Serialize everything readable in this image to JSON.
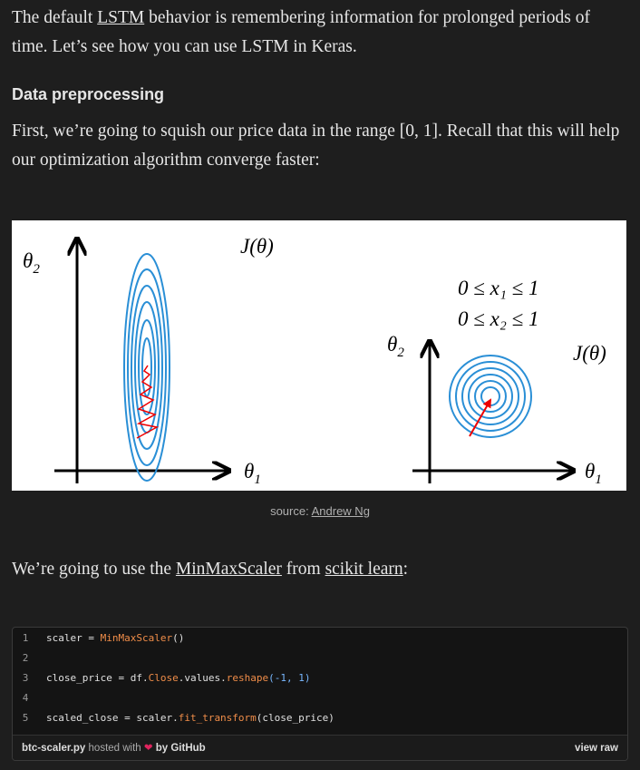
{
  "paragraphs": [
    {
      "before": "The default ",
      "link": "LSTM",
      "after": " behavior is remembering information for prolonged periods of time. Let’s see how you can use LSTM in Keras."
    },
    {
      "text": "First, we’re going to squish our price data in the range [0, 1]. Recall that this will help our optimization algorithm converge faster:"
    },
    {
      "before": "We’re going to use the ",
      "link1": "MinMaxScaler",
      "middle": " from ",
      "link2": "scikit learn",
      "after": ":"
    }
  ],
  "heading": "Data preprocessing",
  "figure": {
    "left": {
      "y_axis": "θ",
      "y_sub": "2",
      "cost": "J(θ)",
      "x_axis": "θ",
      "x_sub": "1"
    },
    "right": {
      "constraint1": "0 ≤ x₁ ≤ 1",
      "constraint2": "0 ≤ x₂ ≤ 1",
      "y_axis": "θ",
      "y_sub": "2",
      "cost": "J(θ)",
      "x_axis": "θ",
      "x_sub": "1"
    },
    "caption": "source: ",
    "caption_link": "Andrew Ng"
  },
  "gist": {
    "lines": [
      {
        "number": "1",
        "tokens": [
          {
            "text": "scaler ",
            "color": "#e0e0e0"
          },
          {
            "text": "=",
            "color": "#e0e0e0"
          },
          {
            "text": " MinMaxScaler",
            "color": "#f08d49"
          },
          {
            "text": "()",
            "color": "#e0e0e0"
          }
        ]
      },
      {
        "number": "2",
        "tokens": []
      },
      {
        "number": "3",
        "tokens": [
          {
            "text": "close_price ",
            "color": "#e0e0e0"
          },
          {
            "text": "=",
            "color": "#e0e0e0"
          },
          {
            "text": " df.",
            "color": "#e0e0e0"
          },
          {
            "text": "Close",
            "color": "#f08d49"
          },
          {
            "text": ".values.",
            "color": "#e0e0e0"
          },
          {
            "text": "reshape",
            "color": "#f08d49"
          },
          {
            "text": "(-1, 1)",
            "color": "#79b8ff"
          }
        ]
      },
      {
        "number": "4",
        "tokens": []
      },
      {
        "number": "5",
        "tokens": [
          {
            "text": "scaled_close ",
            "color": "#e0e0e0"
          },
          {
            "text": "=",
            "color": "#e0e0e0"
          },
          {
            "text": " scaler.",
            "color": "#e0e0e0"
          },
          {
            "text": "fit_transform",
            "color": "#f08d49"
          },
          {
            "text": "(close_price)",
            "color": "#e0e0e0"
          }
        ]
      }
    ],
    "file": "btc-scaler.py",
    "hosted": " hosted with ",
    "by": "by GitHub",
    "view_raw": "view raw"
  }
}
